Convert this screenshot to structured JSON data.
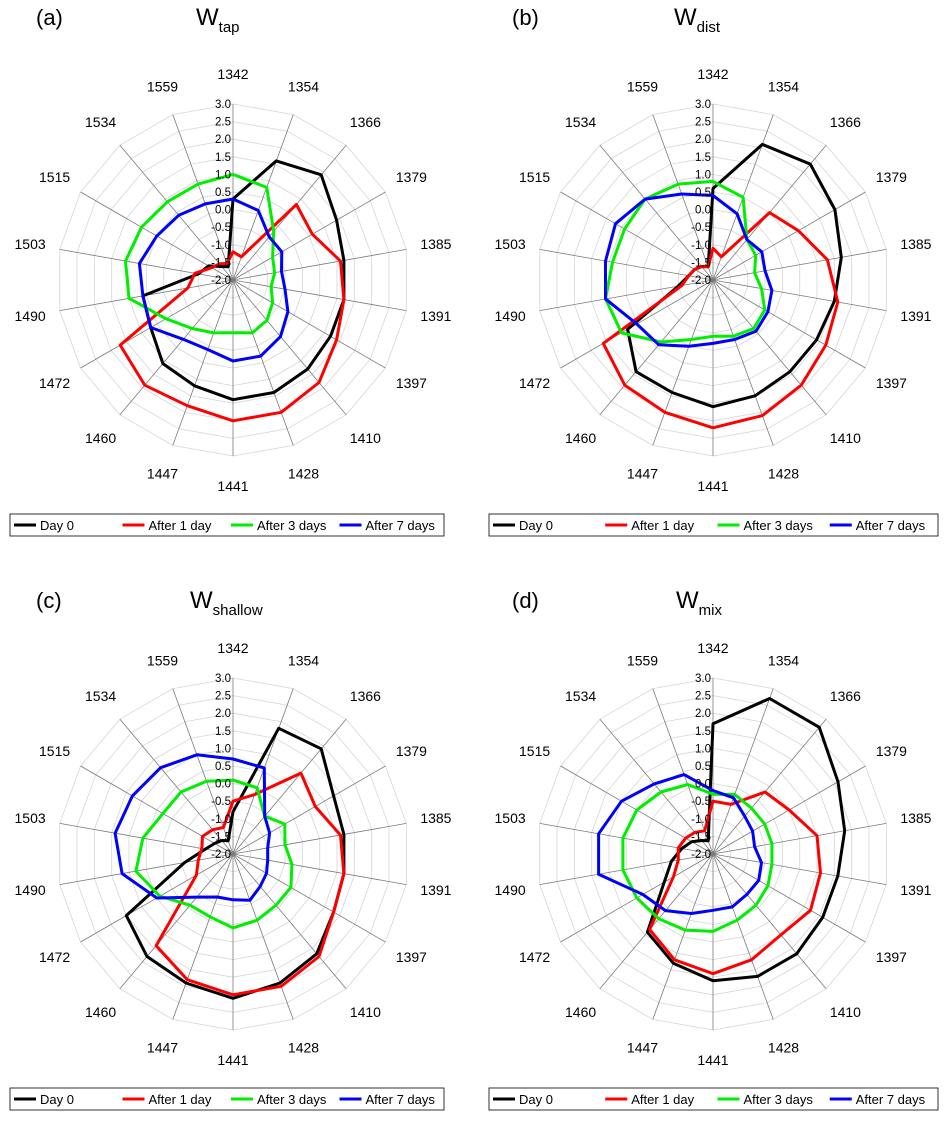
{
  "chart_data": [
    {
      "type": "radar",
      "panel_label": "(a)",
      "title_main": "W",
      "title_sub": "tap",
      "categories": [
        "1342",
        "1354",
        "1366",
        "1379",
        "1385",
        "1391",
        "1397",
        "1410",
        "1428",
        "1441",
        "1447",
        "1460",
        "1472",
        "1490",
        "1503",
        "1515",
        "1534",
        "1559"
      ],
      "ticks": [
        "-2.0",
        "-1.5",
        "-1.0",
        "-0.5",
        "0.0",
        "0.5",
        "1.0",
        "1.5",
        "2.0",
        "2.5",
        "3.0"
      ],
      "rlim": [
        -2.0,
        3.0
      ],
      "series": [
        {
          "name": "Day 0",
          "color": "#000000",
          "values": [
            0.3,
            1.6,
            1.9,
            1.4,
            1.2,
            1.2,
            1.2,
            1.3,
            1.4,
            1.4,
            1.2,
            1.1,
            0.7,
            0.6,
            -1.0,
            -1.2,
            -1.5,
            -1.6
          ]
        },
        {
          "name": "After 1 day",
          "color": "#ff0000",
          "values": [
            -1.2,
            -1.3,
            0.8,
            0.6,
            1.1,
            1.2,
            1.4,
            1.8,
            2.0,
            2.0,
            1.8,
            1.9,
            1.7,
            -0.7,
            -0.9,
            -1.3,
            -1.4,
            -1.5
          ]
        },
        {
          "name": "After 3 days",
          "color": "#00ee00",
          "values": [
            1.0,
            0.8,
            -0.2,
            -0.7,
            -0.8,
            -0.9,
            -0.7,
            -0.5,
            -0.4,
            -0.5,
            -0.4,
            -0.2,
            0.2,
            1.0,
            1.1,
            1.0,
            0.9,
            0.9
          ]
        },
        {
          "name": "After 7 days",
          "color": "#0000ff",
          "values": [
            0.3,
            0.1,
            -0.4,
            -0.4,
            -0.6,
            -0.5,
            -0.2,
            0.1,
            0.3,
            0.3,
            0.1,
            0.2,
            0.7,
            0.6,
            0.7,
            0.5,
            0.4,
            0.3
          ]
        }
      ]
    },
    {
      "type": "radar",
      "panel_label": "(b)",
      "title_main": "W",
      "title_sub": "dist",
      "categories": [
        "1342",
        "1354",
        "1366",
        "1379",
        "1385",
        "1391",
        "1397",
        "1410",
        "1428",
        "1441",
        "1447",
        "1460",
        "1472",
        "1490",
        "1503",
        "1515",
        "1534",
        "1559"
      ],
      "ticks": [
        "-2.0",
        "-1.5",
        "-1.0",
        "-0.5",
        "0.0",
        "0.5",
        "1.0",
        "1.5",
        "2.0",
        "2.5",
        "3.0"
      ],
      "rlim": [
        -2.0,
        3.0
      ],
      "series": [
        {
          "name": "Day 0",
          "color": "#000000",
          "values": [
            0.6,
            2.1,
            2.3,
            2.0,
            1.7,
            1.5,
            1.4,
            1.4,
            1.5,
            1.6,
            1.4,
            1.4,
            0.8,
            -1.0,
            -1.3,
            -1.4,
            -1.5,
            -1.6
          ]
        },
        {
          "name": "After 1 day",
          "color": "#ff0000",
          "values": [
            -1.1,
            -1.3,
            0.5,
            0.8,
            1.3,
            1.6,
            1.7,
            1.9,
            2.1,
            2.2,
            2.0,
            1.9,
            1.6,
            -1.1,
            -1.3,
            -1.4,
            -1.5,
            -1.6
          ]
        },
        {
          "name": "After 3 days",
          "color": "#00ee00",
          "values": [
            0.8,
            0.5,
            -0.5,
            -0.6,
            -0.8,
            -0.6,
            -0.3,
            -0.2,
            -0.3,
            -0.4,
            -0.2,
            0.3,
            1.0,
            1.1,
            0.9,
            0.9,
            1.0,
            0.9
          ]
        },
        {
          "name": "After 7 days",
          "color": "#0000ff",
          "values": [
            0.4,
            0.0,
            -0.5,
            -0.4,
            -0.5,
            -0.3,
            -0.2,
            -0.1,
            -0.2,
            -0.2,
            0.0,
            0.4,
            0.5,
            1.1,
            1.1,
            1.2,
            1.0,
            0.6
          ]
        }
      ]
    },
    {
      "type": "radar",
      "panel_label": "(c)",
      "title_main": "W",
      "title_sub": "shallow",
      "categories": [
        "1342",
        "1354",
        "1366",
        "1379",
        "1385",
        "1391",
        "1397",
        "1410",
        "1428",
        "1441",
        "1447",
        "1460",
        "1472",
        "1490",
        "1503",
        "1515",
        "1534",
        "1559"
      ],
      "ticks": [
        "-2.0",
        "-1.5",
        "-1.0",
        "-0.5",
        "0.0",
        "0.5",
        "1.0",
        "1.5",
        "2.0",
        "2.5",
        "3.0"
      ],
      "rlim": [
        -2.0,
        3.0
      ],
      "series": [
        {
          "name": "Day 0",
          "color": "#000000",
          "values": [
            -0.8,
            1.8,
            1.9,
            1.3,
            1.2,
            1.2,
            1.3,
            1.7,
            1.9,
            2.1,
            1.9,
            1.8,
            1.5,
            -0.6,
            -1.2,
            -1.4,
            -1.5,
            -1.6
          ]
        },
        {
          "name": "After 1 day",
          "color": "#ff0000",
          "values": [
            -0.5,
            -0.2,
            1.0,
            0.7,
            1.1,
            1.2,
            1.3,
            1.8,
            2.0,
            2.0,
            1.8,
            1.4,
            -0.8,
            -1.0,
            -1.1,
            -1.0,
            -1.1,
            -1.2
          ]
        },
        {
          "name": "After 3 days",
          "color": "#00ee00",
          "values": [
            0.1,
            0.0,
            -0.6,
            -0.3,
            -0.5,
            -0.3,
            -0.1,
            -0.1,
            0.0,
            0.1,
            -0.1,
            -0.1,
            0.4,
            0.8,
            0.6,
            0.3,
            0.3,
            0.2
          ]
        },
        {
          "name": "After 7 days",
          "color": "#0000ff",
          "values": [
            0.7,
            0.6,
            -0.6,
            -0.8,
            -1.0,
            -1.0,
            -0.9,
            -0.8,
            -0.6,
            -0.7,
            -0.7,
            -0.4,
            0.5,
            1.2,
            1.4,
            1.3,
            1.2,
            1.0
          ]
        }
      ]
    },
    {
      "type": "radar",
      "panel_label": "(d)",
      "title_main": "W",
      "title_sub": "mix",
      "categories": [
        "1342",
        "1354",
        "1366",
        "1379",
        "1385",
        "1391",
        "1397",
        "1410",
        "1428",
        "1441",
        "1447",
        "1460",
        "1472",
        "1490",
        "1503",
        "1515",
        "1534",
        "1559"
      ],
      "ticks": [
        "-2.0",
        "-1.5",
        "-1.0",
        "-0.5",
        "0.0",
        "0.5",
        "1.0",
        "1.5",
        "2.0",
        "2.5",
        "3.0"
      ],
      "rlim": [
        -2.0,
        3.0
      ],
      "series": [
        {
          "name": "Day 0",
          "color": "#000000",
          "values": [
            1.7,
            2.7,
            2.7,
            2.1,
            1.8,
            1.6,
            1.6,
            1.7,
            1.7,
            1.6,
            1.3,
            0.9,
            -0.4,
            -0.8,
            -1.1,
            -1.3,
            -1.5,
            -1.6
          ]
        },
        {
          "name": "After 1 day",
          "color": "#ff0000",
          "values": [
            -0.5,
            -0.5,
            0.3,
            0.5,
            1.0,
            1.1,
            1.2,
            1.0,
            1.2,
            1.4,
            1.2,
            0.8,
            -0.7,
            -1.0,
            -1.0,
            -1.1,
            -1.2,
            -1.3
          ]
        },
        {
          "name": "After 3 days",
          "color": "#00ee00",
          "values": [
            -0.3,
            -0.2,
            -0.3,
            -0.3,
            -0.3,
            -0.3,
            -0.2,
            -0.1,
            0.0,
            0.2,
            0.3,
            0.4,
            0.5,
            0.6,
            0.6,
            0.5,
            0.3,
            0.1
          ]
        },
        {
          "name": "After 7 days",
          "color": "#0000ff",
          "values": [
            -0.2,
            -0.3,
            -0.6,
            -0.7,
            -0.8,
            -0.6,
            -0.5,
            -0.5,
            -0.4,
            -0.4,
            -0.2,
            0.1,
            0.3,
            1.3,
            1.3,
            1.0,
            0.6,
            0.4
          ]
        }
      ]
    }
  ]
}
